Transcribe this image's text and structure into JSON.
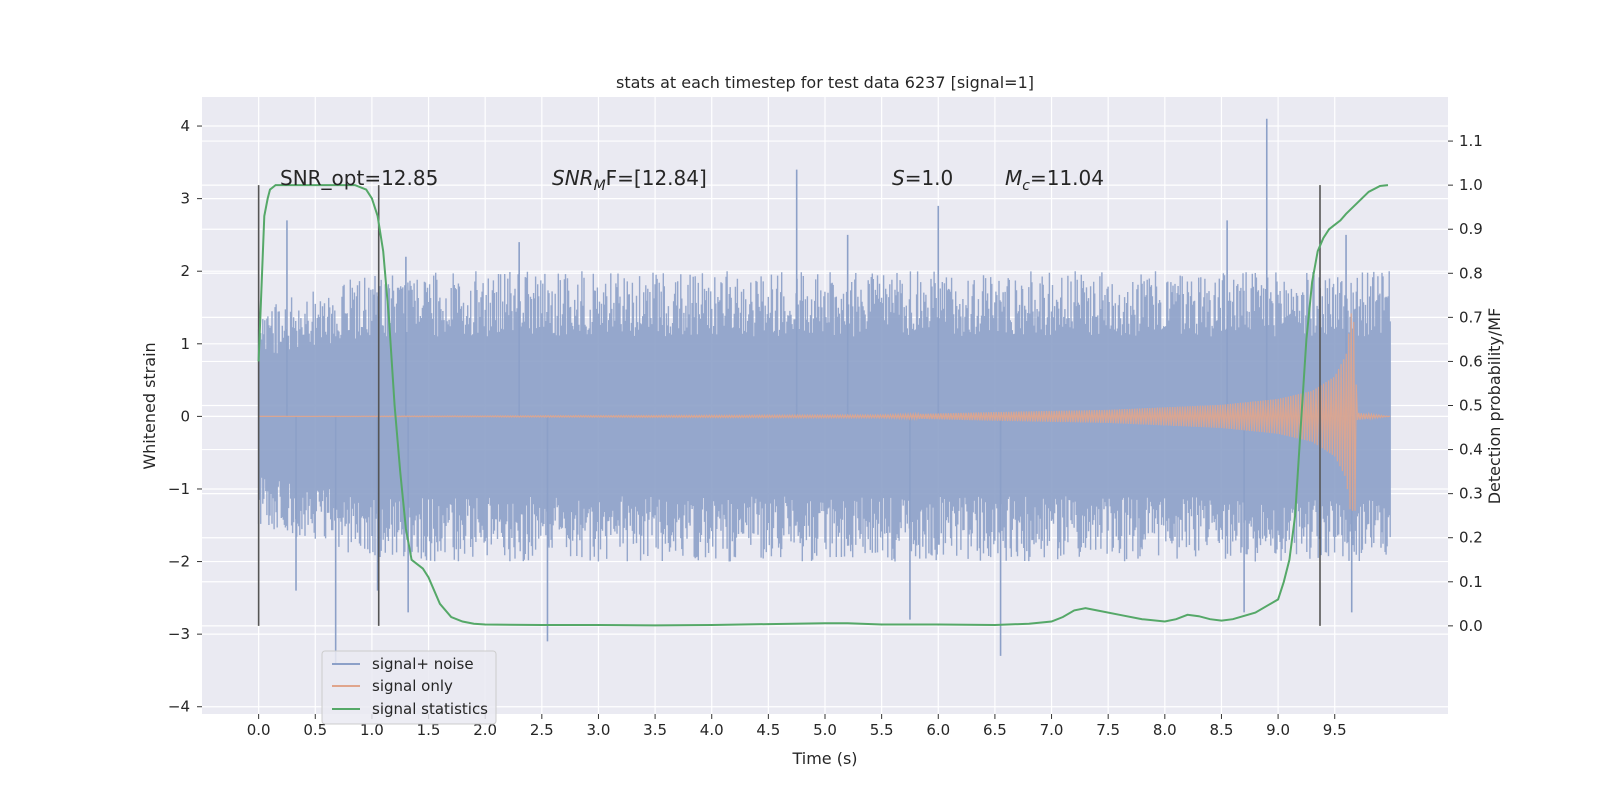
{
  "chart_data": {
    "type": "line",
    "title": "stats at each timestep for test data 6237 [signal=1]",
    "xlabel": "Time (s)",
    "ylabel": "Whitened strain",
    "ylabel_right": "Detection probability/MF",
    "xlim": [
      -0.5,
      10.5
    ],
    "ylim": [
      -4.1,
      4.4
    ],
    "ylim_right": [
      -0.2,
      1.2
    ],
    "x_ticks": [
      "0.0",
      "0.5",
      "1.0",
      "1.5",
      "2.0",
      "2.5",
      "3.0",
      "3.5",
      "4.0",
      "4.5",
      "5.0",
      "5.5",
      "6.0",
      "6.5",
      "7.0",
      "7.5",
      "8.0",
      "8.5",
      "9.0",
      "9.5"
    ],
    "y_ticks": [
      "4",
      "3",
      "2",
      "1",
      "0",
      "−1",
      "−2",
      "−3",
      "−4"
    ],
    "y_ticks_right": [
      "1.1",
      "1.0",
      "0.9",
      "0.8",
      "0.7",
      "0.6",
      "0.5",
      "0.4",
      "0.3",
      "0.2",
      "0.1",
      "0.0"
    ],
    "grid": true,
    "legend_position": "bottom-left",
    "annotations": {
      "snr_opt": "SNR_opt=12.85",
      "snr_mf_prefix": "SNR",
      "snr_mf_sub": "M",
      "snr_mf_suffix": "F=[12.84]",
      "s_prefix": "S",
      "s_suffix": "=1.0",
      "mc_prefix": "M",
      "mc_sub": "c",
      "mc_suffix": "=11.04"
    },
    "vertical_markers": [
      {
        "x": 0.0,
        "y0": 0.0,
        "y1": 1.0
      },
      {
        "x": 1.06,
        "y0": 0.0,
        "y1": 1.0
      },
      {
        "x": 9.37,
        "y0": 0.0,
        "y1": 1.0
      }
    ],
    "series": [
      {
        "name": "signal+ noise",
        "color": "#8ca0c8",
        "axis": "left",
        "x_range": [
          0.0,
          9.99
        ],
        "envelope": [
          [
            0.0,
            -1.5,
            1.5
          ],
          [
            1.0,
            -2.0,
            2.0
          ],
          [
            2.0,
            -2.0,
            2.0
          ],
          [
            3.0,
            -2.0,
            2.0
          ],
          [
            4.0,
            -2.0,
            2.0
          ],
          [
            5.0,
            -2.0,
            2.0
          ],
          [
            6.0,
            -2.0,
            2.0
          ],
          [
            7.0,
            -2.0,
            2.0
          ],
          [
            8.0,
            -2.0,
            2.0
          ],
          [
            9.0,
            -2.0,
            2.0
          ],
          [
            9.99,
            -2.0,
            2.0
          ]
        ],
        "spikes": [
          [
            0.25,
            2.7
          ],
          [
            0.68,
            -3.4
          ],
          [
            0.33,
            -2.4
          ],
          [
            1.05,
            -2.4
          ],
          [
            1.3,
            2.2
          ],
          [
            1.32,
            -2.7
          ],
          [
            2.55,
            -3.1
          ],
          [
            2.3,
            2.4
          ],
          [
            4.75,
            3.4
          ],
          [
            5.2,
            2.5
          ],
          [
            5.75,
            -2.8
          ],
          [
            6.0,
            2.9
          ],
          [
            6.55,
            -3.3
          ],
          [
            8.55,
            2.7
          ],
          [
            8.9,
            4.1
          ],
          [
            8.7,
            -2.7
          ],
          [
            9.65,
            -2.7
          ],
          [
            9.6,
            2.5
          ]
        ]
      },
      {
        "name": "signal only",
        "color": "#e0a58c",
        "axis": "left",
        "envelope": [
          [
            0.0,
            0.0
          ],
          [
            5.5,
            0.02
          ],
          [
            6.5,
            0.06
          ],
          [
            7.5,
            0.09
          ],
          [
            8.5,
            0.16
          ],
          [
            9.0,
            0.24
          ],
          [
            9.3,
            0.35
          ],
          [
            9.5,
            0.55
          ],
          [
            9.6,
            0.85
          ],
          [
            9.66,
            1.6
          ],
          [
            9.7,
            0.05
          ],
          [
            9.99,
            0.0
          ]
        ],
        "min_at_merger": -1.3
      },
      {
        "name": "signal statistics",
        "color": "#55a868",
        "axis": "right",
        "x": [
          0.0,
          0.05,
          0.08,
          0.1,
          0.15,
          0.2,
          0.3,
          0.5,
          0.7,
          0.85,
          0.95,
          1.0,
          1.05,
          1.1,
          1.15,
          1.2,
          1.25,
          1.3,
          1.35,
          1.4,
          1.45,
          1.5,
          1.6,
          1.7,
          1.8,
          1.9,
          2.0,
          2.5,
          3.0,
          3.5,
          4.0,
          4.5,
          5.0,
          5.2,
          5.5,
          6.0,
          6.5,
          6.8,
          7.0,
          7.1,
          7.2,
          7.3,
          7.4,
          7.6,
          7.8,
          8.0,
          8.1,
          8.2,
          8.3,
          8.4,
          8.5,
          8.6,
          8.8,
          9.0,
          9.05,
          9.1,
          9.15,
          9.2,
          9.25,
          9.3,
          9.35,
          9.4,
          9.45,
          9.5,
          9.55,
          9.6,
          9.7,
          9.8,
          9.9,
          9.97
        ],
        "values": [
          0.6,
          0.93,
          0.97,
          0.99,
          1.0,
          1.0,
          1.0,
          1.0,
          1.0,
          1.0,
          0.99,
          0.97,
          0.93,
          0.85,
          0.7,
          0.5,
          0.35,
          0.22,
          0.15,
          0.14,
          0.13,
          0.11,
          0.05,
          0.02,
          0.01,
          0.005,
          0.003,
          0.002,
          0.002,
          0.001,
          0.002,
          0.004,
          0.006,
          0.006,
          0.003,
          0.003,
          0.002,
          0.005,
          0.01,
          0.02,
          0.035,
          0.04,
          0.035,
          0.025,
          0.015,
          0.01,
          0.015,
          0.025,
          0.022,
          0.015,
          0.012,
          0.015,
          0.03,
          0.06,
          0.1,
          0.15,
          0.25,
          0.45,
          0.65,
          0.78,
          0.85,
          0.88,
          0.9,
          0.91,
          0.92,
          0.935,
          0.96,
          0.985,
          0.998,
          1.0
        ]
      }
    ]
  }
}
